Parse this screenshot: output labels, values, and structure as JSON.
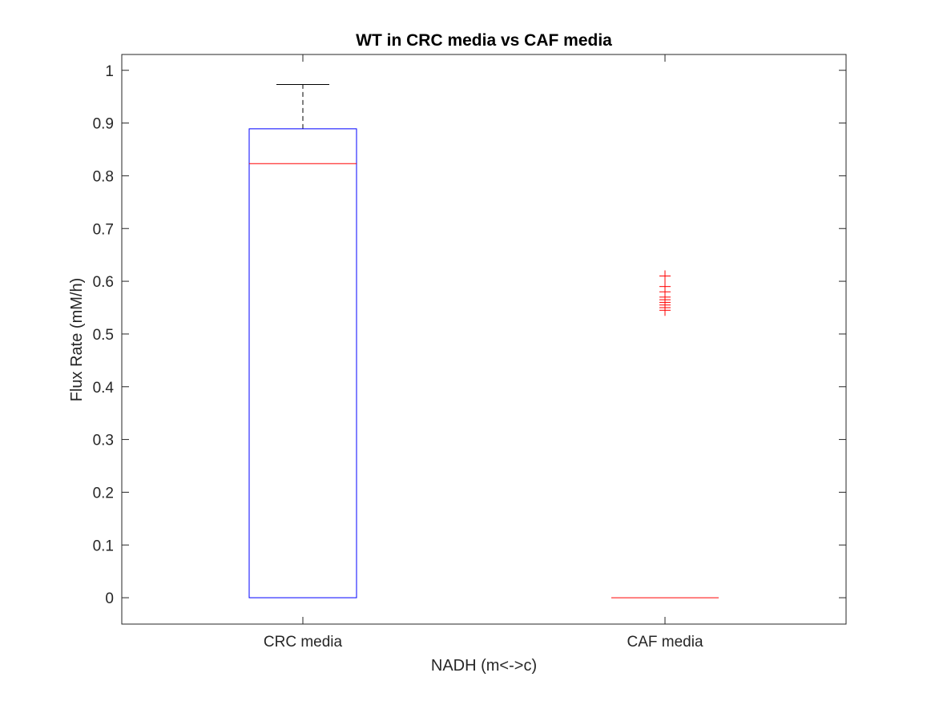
{
  "chart_data": {
    "type": "box",
    "title": "WT in CRC media vs CAF media",
    "xlabel": "NADH (m<->c)",
    "ylabel": "Flux Rate (mM/h)",
    "ylim": [
      -0.05,
      1.03
    ],
    "yticks": [
      "0",
      "0.1",
      "0.2",
      "0.3",
      "0.4",
      "0.5",
      "0.6",
      "0.7",
      "0.8",
      "0.9",
      "1"
    ],
    "categories": [
      "CRC media",
      "CAF media"
    ],
    "boxes": [
      {
        "category": "CRC media",
        "lower_whisker": 0,
        "q1": 0,
        "median": 0.823,
        "q3": 0.889,
        "upper_whisker": 0.973,
        "outliers": []
      },
      {
        "category": "CAF media",
        "lower_whisker": 0,
        "q1": 0,
        "median": 0,
        "q3": 0,
        "upper_whisker": 0,
        "outliers": [
          0.61,
          0.59,
          0.58,
          0.57,
          0.565,
          0.56,
          0.555,
          0.55,
          0.545
        ]
      }
    ],
    "grid": false,
    "colors": {
      "box": "#0000ff",
      "median": "#ff0000",
      "whisker": "#000000",
      "outlier": "#ff0000",
      "axes": "#262626"
    }
  }
}
